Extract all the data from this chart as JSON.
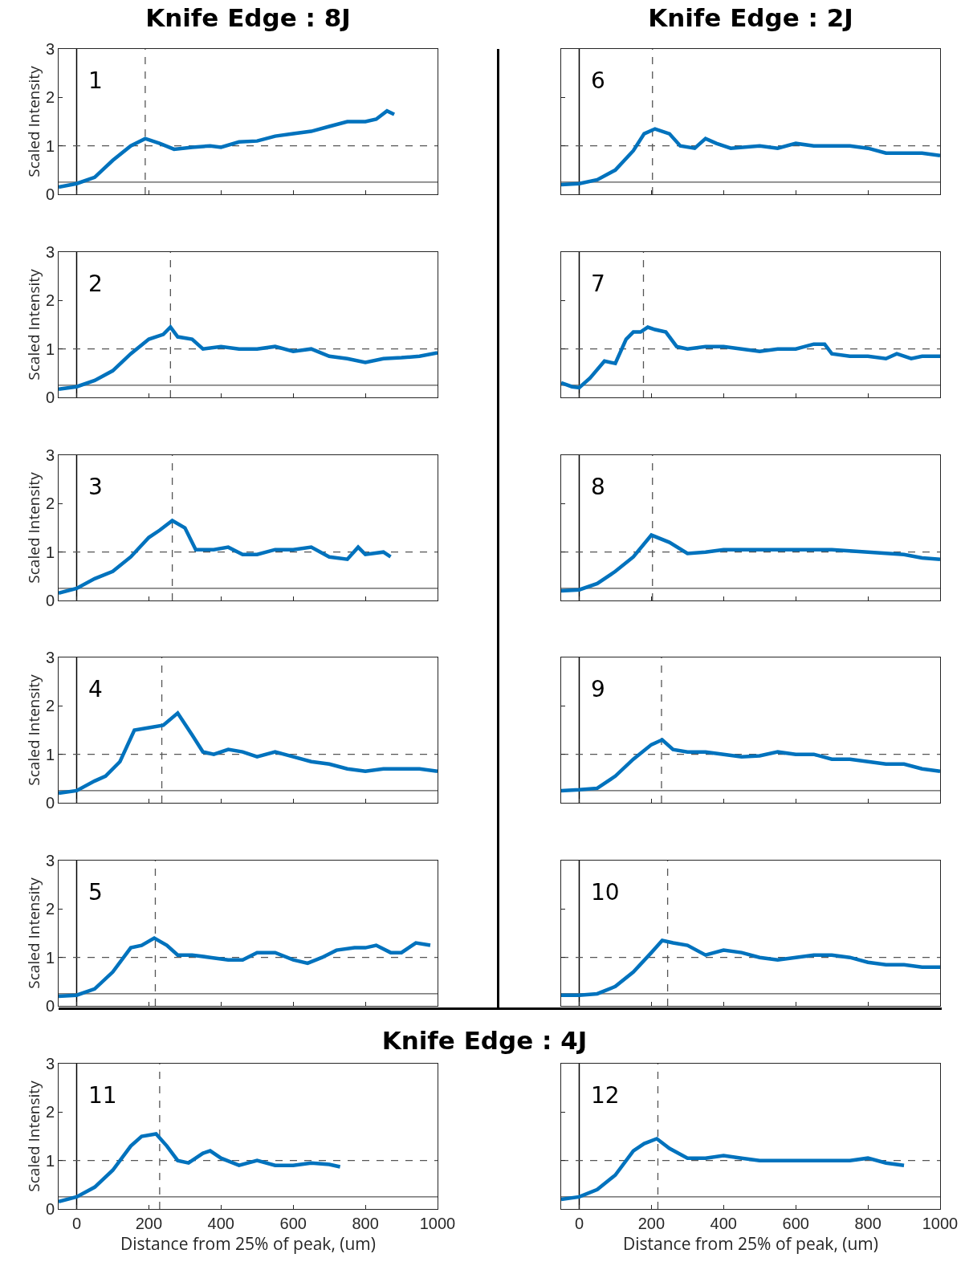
{
  "chart_data": [
    {
      "type": "line",
      "title": "Knife Edge : 8J",
      "ylabel": "Scaled Intensity",
      "annotations": [
        "1"
      ],
      "xlim": [
        -50,
        1000
      ],
      "ylim": [
        0,
        3
      ],
      "xticks": [
        0,
        200,
        400,
        600,
        800,
        1000
      ],
      "yticks": [
        0,
        1,
        2,
        3
      ],
      "tick_labels": "y",
      "grid": false,
      "ref_lines": [
        {
          "axis": "x",
          "value": 0,
          "color": "#000000",
          "line_style": "solid"
        },
        {
          "axis": "y",
          "value": 0.25,
          "color": "#555555",
          "line_style": "solid"
        },
        {
          "axis": "y",
          "value": 1,
          "color": "#555555",
          "line_style": "dashed"
        },
        {
          "axis": "x",
          "value": 190,
          "color": "#555555",
          "line_style": "dashed"
        }
      ],
      "series": [
        {
          "color": "#0072bd",
          "x": [
            -50,
            0,
            50,
            100,
            150,
            190,
            230,
            270,
            320,
            370,
            400,
            450,
            500,
            550,
            600,
            650,
            700,
            750,
            800,
            830,
            860,
            880
          ],
          "values": [
            0.15,
            0.22,
            0.35,
            0.7,
            1.0,
            1.15,
            1.05,
            0.93,
            0.97,
            1.0,
            0.97,
            1.08,
            1.1,
            1.2,
            1.25,
            1.3,
            1.4,
            1.5,
            1.5,
            1.55,
            1.72,
            1.65
          ]
        }
      ]
    },
    {
      "type": "line",
      "ylabel": "Scaled Intensity",
      "annotations": [
        "2"
      ],
      "xlim": [
        -50,
        1000
      ],
      "ylim": [
        0,
        3
      ],
      "xticks": [
        0,
        200,
        400,
        600,
        800,
        1000
      ],
      "yticks": [
        0,
        1,
        2,
        3
      ],
      "tick_labels": "y",
      "grid": false,
      "ref_lines": [
        {
          "axis": "x",
          "value": 0,
          "color": "#000000",
          "line_style": "solid"
        },
        {
          "axis": "y",
          "value": 0.25,
          "color": "#555555",
          "line_style": "solid"
        },
        {
          "axis": "y",
          "value": 1,
          "color": "#555555",
          "line_style": "dashed"
        },
        {
          "axis": "x",
          "value": 260,
          "color": "#555555",
          "line_style": "dashed"
        }
      ],
      "series": [
        {
          "color": "#0072bd",
          "x": [
            -50,
            0,
            50,
            100,
            150,
            200,
            240,
            260,
            280,
            320,
            350,
            400,
            450,
            500,
            550,
            600,
            650,
            700,
            750,
            800,
            850,
            900,
            950,
            1000
          ],
          "values": [
            0.17,
            0.22,
            0.35,
            0.55,
            0.9,
            1.2,
            1.3,
            1.45,
            1.25,
            1.2,
            1.0,
            1.05,
            1.0,
            1.0,
            1.05,
            0.95,
            1.0,
            0.85,
            0.8,
            0.72,
            0.8,
            0.82,
            0.85,
            0.92
          ]
        }
      ]
    },
    {
      "type": "line",
      "ylabel": "Scaled Intensity",
      "annotations": [
        "3"
      ],
      "xlim": [
        -50,
        1000
      ],
      "ylim": [
        0,
        3
      ],
      "xticks": [
        0,
        200,
        400,
        600,
        800,
        1000
      ],
      "yticks": [
        0,
        1,
        2,
        3
      ],
      "tick_labels": "y",
      "grid": false,
      "ref_lines": [
        {
          "axis": "x",
          "value": 0,
          "color": "#000000",
          "line_style": "solid"
        },
        {
          "axis": "y",
          "value": 0.25,
          "color": "#555555",
          "line_style": "solid"
        },
        {
          "axis": "y",
          "value": 1,
          "color": "#555555",
          "line_style": "dashed"
        },
        {
          "axis": "x",
          "value": 265,
          "color": "#555555",
          "line_style": "dashed"
        }
      ],
      "series": [
        {
          "color": "#0072bd",
          "x": [
            -50,
            0,
            50,
            100,
            150,
            200,
            230,
            265,
            300,
            330,
            380,
            420,
            460,
            500,
            550,
            600,
            650,
            700,
            750,
            780,
            800,
            850,
            870
          ],
          "values": [
            0.15,
            0.25,
            0.45,
            0.6,
            0.9,
            1.3,
            1.45,
            1.65,
            1.5,
            1.05,
            1.05,
            1.1,
            0.95,
            0.95,
            1.05,
            1.05,
            1.1,
            0.9,
            0.85,
            1.1,
            0.95,
            1.0,
            0.9
          ]
        }
      ]
    },
    {
      "type": "line",
      "ylabel": "Scaled Intensity",
      "annotations": [
        "4"
      ],
      "xlim": [
        -50,
        1000
      ],
      "ylim": [
        0,
        3
      ],
      "xticks": [
        0,
        200,
        400,
        600,
        800,
        1000
      ],
      "yticks": [
        0,
        1,
        2,
        3
      ],
      "tick_labels": "y",
      "grid": false,
      "ref_lines": [
        {
          "axis": "x",
          "value": 0,
          "color": "#000000",
          "line_style": "solid"
        },
        {
          "axis": "y",
          "value": 0.25,
          "color": "#555555",
          "line_style": "solid"
        },
        {
          "axis": "y",
          "value": 1,
          "color": "#555555",
          "line_style": "dashed"
        },
        {
          "axis": "x",
          "value": 236,
          "color": "#555555",
          "line_style": "dashed"
        }
      ],
      "series": [
        {
          "color": "#0072bd",
          "x": [
            -50,
            0,
            50,
            80,
            120,
            160,
            200,
            240,
            280,
            320,
            350,
            380,
            420,
            460,
            500,
            550,
            600,
            650,
            700,
            750,
            800,
            850,
            900,
            950,
            1000
          ],
          "values": [
            0.2,
            0.25,
            0.45,
            0.55,
            0.85,
            1.5,
            1.55,
            1.6,
            1.85,
            1.4,
            1.05,
            1.0,
            1.1,
            1.05,
            0.95,
            1.05,
            0.95,
            0.85,
            0.8,
            0.7,
            0.65,
            0.7,
            0.7,
            0.7,
            0.65
          ]
        }
      ]
    },
    {
      "type": "line",
      "ylabel": "Scaled Intensity",
      "annotations": [
        "5"
      ],
      "xlim": [
        -50,
        1000
      ],
      "ylim": [
        0,
        3
      ],
      "xticks": [
        0,
        200,
        400,
        600,
        800,
        1000
      ],
      "yticks": [
        0,
        1,
        2,
        3
      ],
      "tick_labels": "y",
      "grid": false,
      "ref_lines": [
        {
          "axis": "x",
          "value": 0,
          "color": "#000000",
          "line_style": "solid"
        },
        {
          "axis": "y",
          "value": 0.25,
          "color": "#555555",
          "line_style": "solid"
        },
        {
          "axis": "y",
          "value": 1,
          "color": "#555555",
          "line_style": "dashed"
        },
        {
          "axis": "x",
          "value": 218,
          "color": "#555555",
          "line_style": "dashed"
        }
      ],
      "series": [
        {
          "color": "#0072bd",
          "x": [
            -50,
            0,
            50,
            100,
            150,
            180,
            215,
            250,
            280,
            320,
            370,
            420,
            460,
            500,
            550,
            600,
            640,
            680,
            720,
            770,
            800,
            830,
            870,
            900,
            940,
            980
          ],
          "values": [
            0.2,
            0.22,
            0.35,
            0.7,
            1.2,
            1.25,
            1.4,
            1.25,
            1.05,
            1.05,
            1.0,
            0.95,
            0.95,
            1.1,
            1.1,
            0.95,
            0.88,
            1.0,
            1.15,
            1.2,
            1.2,
            1.25,
            1.1,
            1.1,
            1.3,
            1.25
          ]
        }
      ]
    },
    {
      "type": "line",
      "title": "Knife Edge : 2J",
      "annotations": [
        "6"
      ],
      "xlim": [
        -50,
        1000
      ],
      "ylim": [
        0,
        3
      ],
      "xticks": [
        0,
        200,
        400,
        600,
        800,
        1000
      ],
      "yticks": [
        0,
        1,
        2,
        3
      ],
      "tick_labels": false,
      "grid": false,
      "ref_lines": [
        {
          "axis": "x",
          "value": 0,
          "color": "#000000",
          "line_style": "solid"
        },
        {
          "axis": "y",
          "value": 0.25,
          "color": "#555555",
          "line_style": "solid"
        },
        {
          "axis": "y",
          "value": 1,
          "color": "#555555",
          "line_style": "dashed"
        },
        {
          "axis": "x",
          "value": 203,
          "color": "#555555",
          "line_style": "dashed"
        }
      ],
      "series": [
        {
          "color": "#0072bd",
          "x": [
            -50,
            0,
            50,
            100,
            150,
            180,
            210,
            250,
            280,
            320,
            350,
            380,
            420,
            500,
            550,
            600,
            650,
            700,
            750,
            800,
            850,
            900,
            950,
            1000
          ],
          "values": [
            0.2,
            0.22,
            0.3,
            0.5,
            0.9,
            1.25,
            1.35,
            1.25,
            1.0,
            0.95,
            1.15,
            1.05,
            0.95,
            1.0,
            0.95,
            1.05,
            1.0,
            1.0,
            1.0,
            0.95,
            0.85,
            0.85,
            0.85,
            0.8
          ]
        }
      ]
    },
    {
      "type": "line",
      "annotations": [
        "7"
      ],
      "xlim": [
        -50,
        1000
      ],
      "ylim": [
        0,
        3
      ],
      "xticks": [
        0,
        200,
        400,
        600,
        800,
        1000
      ],
      "yticks": [
        0,
        1,
        2,
        3
      ],
      "tick_labels": false,
      "grid": false,
      "ref_lines": [
        {
          "axis": "x",
          "value": 0,
          "color": "#000000",
          "line_style": "solid"
        },
        {
          "axis": "y",
          "value": 0.25,
          "color": "#555555",
          "line_style": "solid"
        },
        {
          "axis": "y",
          "value": 1,
          "color": "#555555",
          "line_style": "dashed"
        },
        {
          "axis": "x",
          "value": 178,
          "color": "#555555",
          "line_style": "dashed"
        }
      ],
      "series": [
        {
          "color": "#0072bd",
          "x": [
            -50,
            -20,
            0,
            30,
            70,
            100,
            130,
            150,
            170,
            190,
            210,
            240,
            270,
            300,
            350,
            400,
            450,
            500,
            550,
            600,
            650,
            680,
            700,
            750,
            800,
            850,
            880,
            920,
            950,
            1000
          ],
          "values": [
            0.3,
            0.22,
            0.2,
            0.4,
            0.75,
            0.7,
            1.2,
            1.35,
            1.35,
            1.45,
            1.4,
            1.35,
            1.05,
            1.0,
            1.05,
            1.05,
            1.0,
            0.95,
            1.0,
            1.0,
            1.1,
            1.1,
            0.9,
            0.85,
            0.85,
            0.8,
            0.9,
            0.8,
            0.85,
            0.85
          ]
        }
      ]
    },
    {
      "type": "line",
      "annotations": [
        "8"
      ],
      "xlim": [
        -50,
        1000
      ],
      "ylim": [
        0,
        3
      ],
      "xticks": [
        0,
        200,
        400,
        600,
        800,
        1000
      ],
      "yticks": [
        0,
        1,
        2,
        3
      ],
      "tick_labels": false,
      "grid": false,
      "ref_lines": [
        {
          "axis": "x",
          "value": 0,
          "color": "#000000",
          "line_style": "solid"
        },
        {
          "axis": "y",
          "value": 0.25,
          "color": "#555555",
          "line_style": "solid"
        },
        {
          "axis": "y",
          "value": 1,
          "color": "#555555",
          "line_style": "dashed"
        },
        {
          "axis": "x",
          "value": 203,
          "color": "#555555",
          "line_style": "dashed"
        }
      ],
      "series": [
        {
          "color": "#0072bd",
          "x": [
            -50,
            0,
            50,
            100,
            150,
            200,
            250,
            300,
            350,
            400,
            500,
            600,
            700,
            800,
            900,
            950,
            1000
          ],
          "values": [
            0.2,
            0.22,
            0.35,
            0.6,
            0.9,
            1.35,
            1.2,
            0.97,
            1.0,
            1.05,
            1.05,
            1.05,
            1.05,
            1.0,
            0.95,
            0.88,
            0.85
          ]
        }
      ]
    },
    {
      "type": "line",
      "annotations": [
        "9"
      ],
      "xlim": [
        -50,
        1000
      ],
      "ylim": [
        0,
        3
      ],
      "xticks": [
        0,
        200,
        400,
        600,
        800,
        1000
      ],
      "yticks": [
        0,
        1,
        2,
        3
      ],
      "tick_labels": false,
      "grid": false,
      "ref_lines": [
        {
          "axis": "x",
          "value": 0,
          "color": "#000000",
          "line_style": "solid"
        },
        {
          "axis": "y",
          "value": 0.25,
          "color": "#555555",
          "line_style": "solid"
        },
        {
          "axis": "y",
          "value": 1,
          "color": "#555555",
          "line_style": "dashed"
        },
        {
          "axis": "x",
          "value": 228,
          "color": "#555555",
          "line_style": "dashed"
        }
      ],
      "series": [
        {
          "color": "#0072bd",
          "x": [
            -50,
            0,
            50,
            100,
            150,
            200,
            230,
            260,
            300,
            350,
            400,
            450,
            500,
            550,
            600,
            650,
            700,
            750,
            800,
            850,
            900,
            950,
            1000
          ],
          "values": [
            0.25,
            0.27,
            0.3,
            0.55,
            0.9,
            1.2,
            1.3,
            1.1,
            1.05,
            1.05,
            1.0,
            0.95,
            0.97,
            1.05,
            1.0,
            1.0,
            0.9,
            0.9,
            0.85,
            0.8,
            0.8,
            0.7,
            0.65
          ]
        }
      ]
    },
    {
      "type": "line",
      "annotations": [
        "10"
      ],
      "xlim": [
        -50,
        1000
      ],
      "ylim": [
        0,
        3
      ],
      "xticks": [
        0,
        200,
        400,
        600,
        800,
        1000
      ],
      "yticks": [
        0,
        1,
        2,
        3
      ],
      "tick_labels": false,
      "grid": false,
      "ref_lines": [
        {
          "axis": "x",
          "value": 0,
          "color": "#000000",
          "line_style": "solid"
        },
        {
          "axis": "y",
          "value": 0.25,
          "color": "#555555",
          "line_style": "solid"
        },
        {
          "axis": "y",
          "value": 1,
          "color": "#555555",
          "line_style": "dashed"
        },
        {
          "axis": "x",
          "value": 245,
          "color": "#555555",
          "line_style": "dashed"
        }
      ],
      "series": [
        {
          "color": "#0072bd",
          "x": [
            -50,
            0,
            50,
            100,
            150,
            200,
            230,
            260,
            300,
            350,
            400,
            450,
            500,
            550,
            600,
            650,
            700,
            750,
            800,
            850,
            900,
            950,
            1000
          ],
          "values": [
            0.22,
            0.22,
            0.25,
            0.4,
            0.7,
            1.1,
            1.35,
            1.3,
            1.25,
            1.05,
            1.15,
            1.1,
            1.0,
            0.95,
            1.0,
            1.05,
            1.05,
            1.0,
            0.9,
            0.85,
            0.85,
            0.8,
            0.8
          ]
        }
      ]
    },
    {
      "type": "line",
      "title": "Knife Edge : 4J",
      "xlabel": "Distance from 25% of peak, (um)",
      "ylabel": "Scaled Intensity",
      "annotations": [
        "11"
      ],
      "xlim": [
        -50,
        1000
      ],
      "ylim": [
        0,
        3
      ],
      "xticks": [
        0,
        200,
        400,
        600,
        800,
        1000
      ],
      "yticks": [
        0,
        1,
        2,
        3
      ],
      "grid": false,
      "ref_lines": [
        {
          "axis": "x",
          "value": 0,
          "color": "#000000",
          "line_style": "solid"
        },
        {
          "axis": "y",
          "value": 0.25,
          "color": "#555555",
          "line_style": "solid"
        },
        {
          "axis": "y",
          "value": 1,
          "color": "#555555",
          "line_style": "dashed"
        },
        {
          "axis": "x",
          "value": 230,
          "color": "#555555",
          "line_style": "dashed"
        }
      ],
      "series": [
        {
          "color": "#0072bd",
          "x": [
            -50,
            0,
            50,
            100,
            150,
            180,
            220,
            250,
            280,
            310,
            350,
            370,
            400,
            450,
            500,
            550,
            600,
            650,
            700,
            730
          ],
          "values": [
            0.15,
            0.25,
            0.45,
            0.8,
            1.3,
            1.5,
            1.55,
            1.3,
            1.0,
            0.95,
            1.15,
            1.2,
            1.05,
            0.9,
            1.0,
            0.9,
            0.9,
            0.95,
            0.92,
            0.87
          ]
        }
      ]
    },
    {
      "type": "line",
      "xlabel": "Distance from 25% of peak, (um)",
      "annotations": [
        "12"
      ],
      "xlim": [
        -50,
        1000
      ],
      "ylim": [
        0,
        3
      ],
      "xticks": [
        0,
        200,
        400,
        600,
        800,
        1000
      ],
      "yticks": [
        0,
        1,
        2,
        3
      ],
      "tick_labels": "x",
      "grid": false,
      "ref_lines": [
        {
          "axis": "x",
          "value": 0,
          "color": "#000000",
          "line_style": "solid"
        },
        {
          "axis": "y",
          "value": 0.25,
          "color": "#555555",
          "line_style": "solid"
        },
        {
          "axis": "y",
          "value": 1,
          "color": "#555555",
          "line_style": "dashed"
        },
        {
          "axis": "x",
          "value": 218,
          "color": "#555555",
          "line_style": "dashed"
        }
      ],
      "series": [
        {
          "color": "#0072bd",
          "x": [
            -50,
            0,
            50,
            100,
            150,
            180,
            215,
            250,
            300,
            350,
            400,
            450,
            500,
            600,
            700,
            750,
            800,
            850,
            900
          ],
          "values": [
            0.2,
            0.25,
            0.4,
            0.7,
            1.2,
            1.35,
            1.45,
            1.25,
            1.05,
            1.05,
            1.1,
            1.05,
            1.0,
            1.0,
            1.0,
            1.0,
            1.05,
            0.95,
            0.9
          ]
        }
      ]
    }
  ]
}
